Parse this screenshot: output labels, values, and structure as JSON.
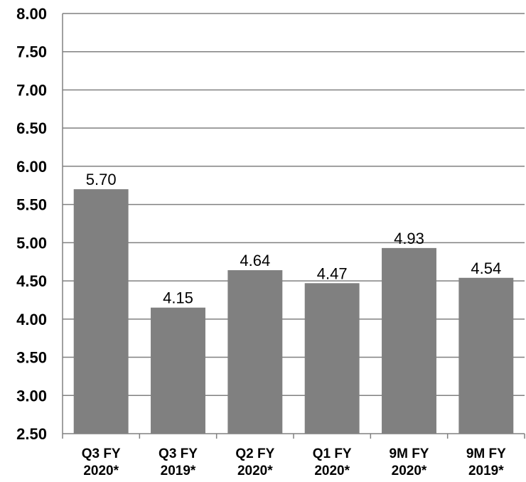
{
  "chart_data": {
    "type": "bar",
    "categories": [
      [
        "Q3 FY",
        "2020*"
      ],
      [
        "Q3 FY",
        "2019*"
      ],
      [
        "Q2 FY",
        "2020*"
      ],
      [
        "Q1 FY",
        "2020*"
      ],
      [
        "9M FY",
        "2020*"
      ],
      [
        "9M FY",
        "2019*"
      ]
    ],
    "values": [
      5.7,
      4.15,
      4.64,
      4.47,
      4.93,
      4.54
    ],
    "data_labels": [
      "5.70",
      "4.15",
      "4.64",
      "4.47",
      "4.93",
      "4.54"
    ],
    "title": "",
    "xlabel": "",
    "ylabel": "",
    "ylim": [
      2.5,
      8.0
    ],
    "yticks": [
      "2.50",
      "3.00",
      "3.50",
      "4.00",
      "4.50",
      "5.00",
      "5.50",
      "6.00",
      "6.50",
      "7.00",
      "7.50",
      "8.00"
    ],
    "grid": true,
    "legend": "none",
    "colors": {
      "bar": "#808080",
      "grid": "#808080",
      "text": "#000000"
    }
  }
}
